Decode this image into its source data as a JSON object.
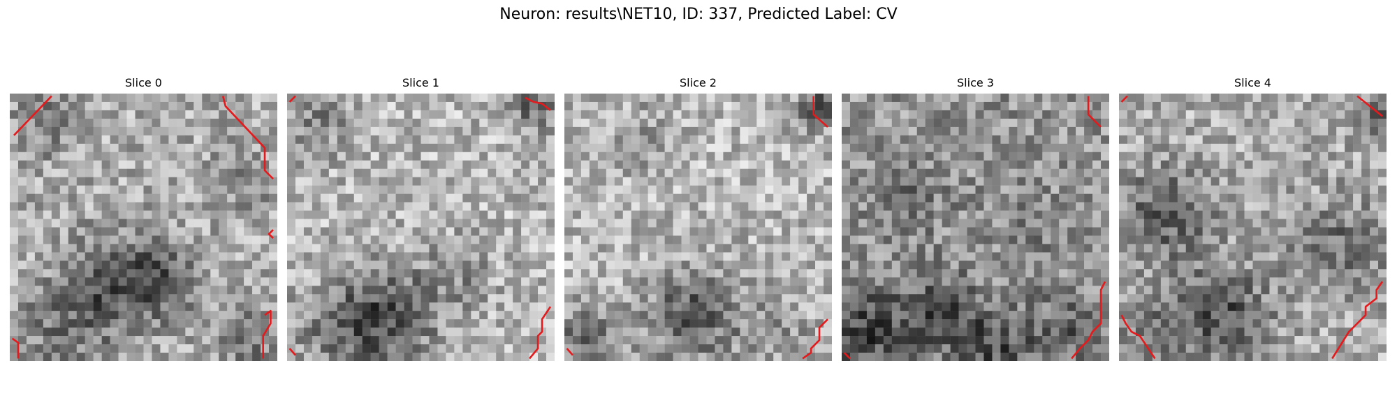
{
  "figure": {
    "title": "Neuron: results\\NET10, ID: 337, Predicted Label: CV"
  },
  "panels": [
    {
      "title": "Slice 0"
    },
    {
      "title": "Slice 1"
    },
    {
      "title": "Slice 2"
    },
    {
      "title": "Slice 3"
    },
    {
      "title": "Slice 4"
    }
  ],
  "colors": {
    "contour": "#e41a1c",
    "background": "#ffffff"
  }
}
